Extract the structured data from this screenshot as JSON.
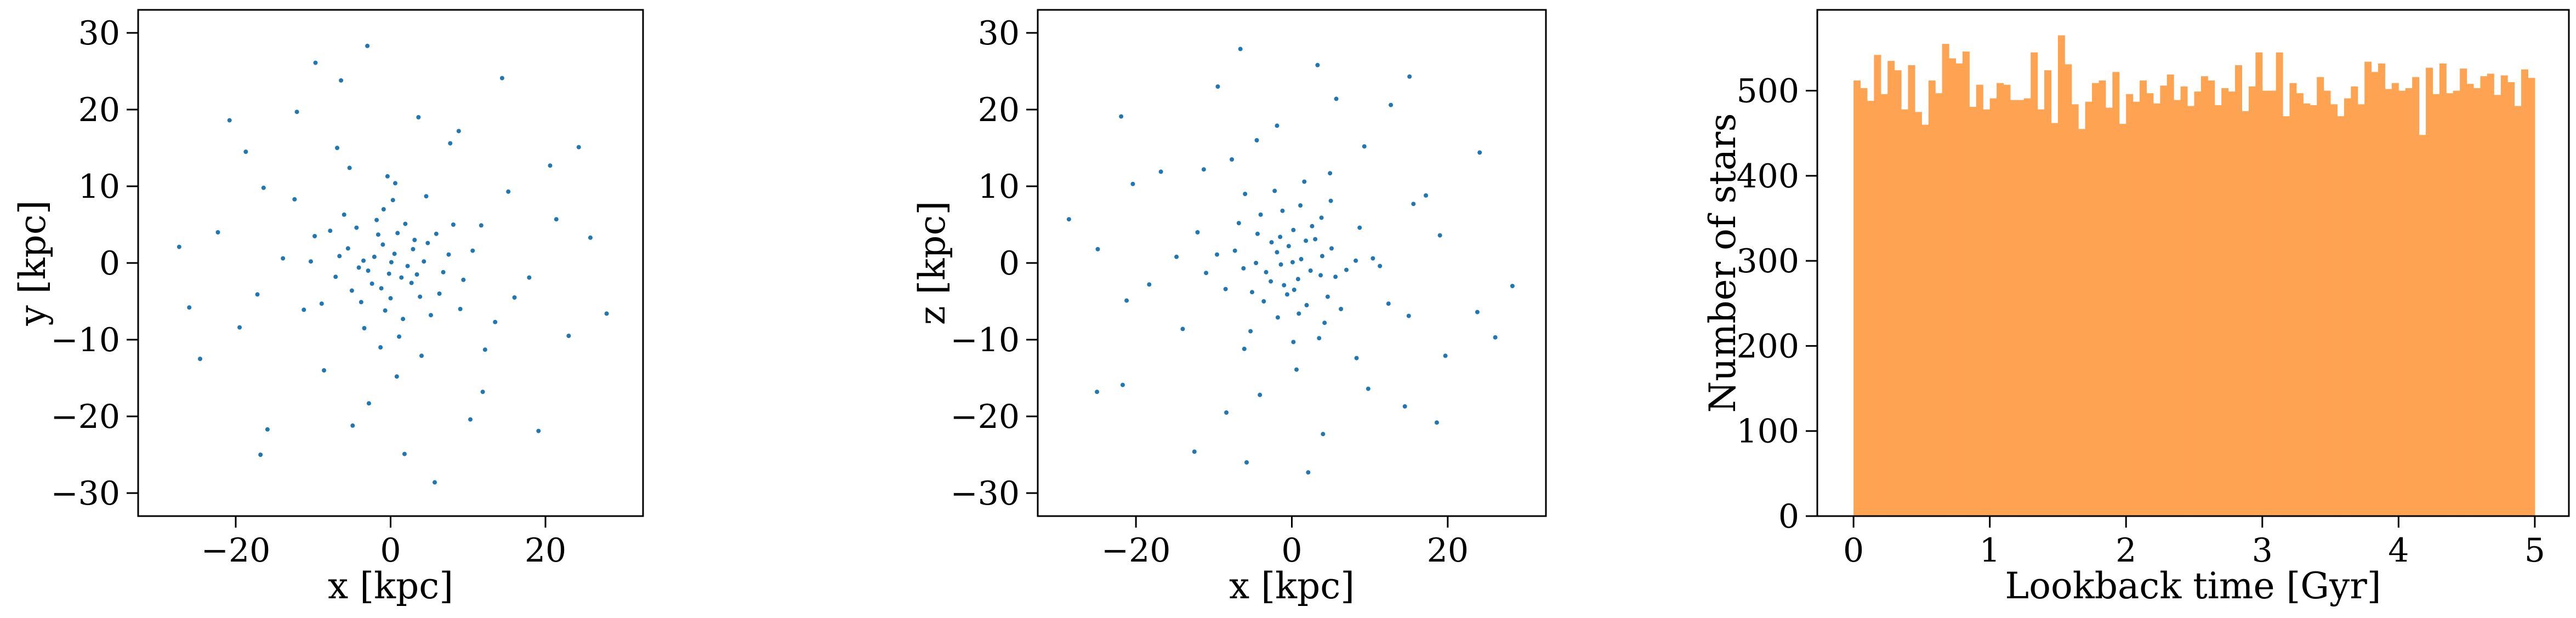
{
  "chart_data": [
    {
      "type": "scatter",
      "xlabel": "x [kpc]",
      "ylabel": "y [kpc]",
      "color": "#1f77b4",
      "xlim": [
        -32.6,
        32.6
      ],
      "ylim": [
        -33,
        33
      ],
      "xticks": [
        {
          "value": -20,
          "label": "−20"
        },
        0,
        20
      ],
      "yticks": [
        {
          "value": -30,
          "label": "−30"
        },
        {
          "value": -20,
          "label": "−20"
        },
        {
          "value": -10,
          "label": "−10"
        },
        0,
        10,
        20,
        30
      ],
      "x": [
        0.5,
        -2.1,
        3.4,
        -1.2,
        4.8,
        -5.5,
        1.9,
        -0.7,
        6.3,
        -3.8,
        2.2,
        -4.4,
        7.5,
        -7.1,
        0.3,
        -1.6,
        3.1,
        -2.9,
        5.2,
        -6.0,
        9.4,
        -9.8,
        1.1,
        -0.4,
        11.7,
        -11.2,
        4.0,
        -5.3,
        13.5,
        -13.9,
        0.8,
        15.2,
        -8.6,
        7.7,
        -16.4,
        17.9,
        -2.8,
        3.6,
        -19.5,
        20.6,
        -12.1,
        10.3,
        -22.3,
        23.0,
        -6.4,
        1.8,
        -24.6,
        25.8,
        -15.9,
        14.4,
        -27.3,
        27.9,
        -3.0,
        5.7,
        -20.8,
        19.1,
        0.1,
        -1.0,
        2.7,
        -3.5,
        1.4,
        -0.2,
        2.9,
        -2.4,
        0.9,
        -4.1,
        4.3,
        -1.8,
        0.0,
        5.9,
        -5.0,
        3.8,
        -6.6,
        6.8,
        -0.9,
        1.6,
        -7.8,
        8.1,
        -3.4,
        4.6,
        -8.9,
        9.0,
        -10.3,
        10.6,
        0.6,
        -1.3,
        -12.4,
        12.2,
        -6.9,
        16.0,
        -17.2,
        8.8,
        -18.7,
        21.4,
        -4.9,
        11.9,
        -26.0,
        24.3,
        -9.7,
        -16.8
      ],
      "y": [
        1.2,
        0.8,
        -1.5,
        -3.3,
        2.6,
        1.9,
        5.1,
        -6.2,
        -4.0,
        -5.1,
        -0.4,
        4.6,
        1.1,
        -1.8,
        8.2,
        3.7,
        3.0,
        -1.0,
        -6.8,
        6.3,
        -2.2,
        3.5,
        -9.6,
        11.3,
        4.9,
        -6.1,
        -12.1,
        12.4,
        -7.7,
        0.6,
        -14.8,
        9.3,
        -14.0,
        15.6,
        9.8,
        -1.9,
        -18.3,
        19.0,
        -8.4,
        12.7,
        19.7,
        -20.4,
        4.0,
        -9.5,
        23.8,
        -24.9,
        -12.5,
        3.3,
        -21.7,
        24.1,
        2.1,
        -6.6,
        28.3,
        -28.6,
        18.6,
        -21.9,
        0.1,
        2.4,
        -2.6,
        0.3,
        -1.9,
        -1.4,
        1.8,
        -2.7,
        3.9,
        -0.6,
        0.2,
        5.6,
        -4.6,
        3.8,
        -3.6,
        -4.4,
        0.9,
        -1.2,
        7.0,
        -7.3,
        4.2,
        5.0,
        -8.5,
        8.7,
        -5.3,
        -6.0,
        0.2,
        1.6,
        10.4,
        -11.0,
        8.3,
        -11.3,
        15.0,
        -4.5,
        -4.1,
        17.2,
        14.5,
        5.7,
        -21.2,
        -16.8,
        -5.8,
        15.1,
        26.1,
        -25.0
      ]
    },
    {
      "type": "scatter",
      "xlabel": "x [kpc]",
      "ylabel": "z [kpc]",
      "color": "#1f77b4",
      "xlim": [
        -32.6,
        32.6
      ],
      "ylim": [
        -33,
        33
      ],
      "xticks": [
        {
          "value": -20,
          "label": "−20"
        },
        0,
        20
      ],
      "yticks": [
        {
          "value": -30,
          "label": "−30"
        },
        {
          "value": -20,
          "label": "−20"
        },
        {
          "value": -10,
          "label": "−10"
        },
        0,
        10,
        20,
        30
      ],
      "x": [
        1.2,
        0.8,
        -1.5,
        -3.3,
        2.6,
        1.9,
        5.1,
        -6.2,
        -4.0,
        -5.1,
        -0.4,
        4.6,
        1.1,
        -1.8,
        8.2,
        3.7,
        3.0,
        -1.0,
        -6.8,
        6.3,
        -2.2,
        3.5,
        -9.6,
        11.3,
        4.9,
        -6.1,
        -12.1,
        12.4,
        -7.7,
        0.6,
        -14.8,
        9.3,
        -14.0,
        15.6,
        9.8,
        -1.9,
        -18.3,
        19.0,
        -8.4,
        12.7,
        19.7,
        -20.4,
        4.0,
        -9.5,
        23.8,
        -24.9,
        -12.5,
        3.3,
        -21.7,
        24.1,
        2.1,
        -6.6,
        28.3,
        -28.6,
        18.6,
        -21.9,
        0.1,
        2.4,
        -2.6,
        0.3,
        -1.9,
        -1.4,
        1.8,
        -2.7,
        3.9,
        -0.6,
        0.2,
        5.6,
        -4.6,
        3.8,
        -3.6,
        -4.4,
        0.9,
        -1.2,
        7.0,
        -7.3,
        4.2,
        5.0,
        -8.5,
        8.7,
        -5.3,
        -6.0,
        0.2,
        1.6,
        10.4,
        -11.0,
        8.3,
        -11.3,
        15.0,
        -4.5,
        -4.1,
        17.2,
        14.5,
        5.7,
        -21.2,
        -16.8,
        -5.8,
        15.1,
        26.1,
        -25.0
      ],
      "y": [
        0.5,
        -2.1,
        3.4,
        -1.2,
        4.8,
        -5.5,
        1.9,
        -0.7,
        6.3,
        -3.8,
        2.2,
        -4.4,
        7.5,
        -7.1,
        0.3,
        -1.6,
        3.1,
        -2.9,
        5.2,
        -6.0,
        9.4,
        -9.8,
        1.1,
        -0.4,
        11.7,
        -11.2,
        4.0,
        -5.3,
        13.5,
        -13.9,
        0.8,
        15.2,
        -8.6,
        7.7,
        -16.4,
        17.9,
        -2.8,
        3.6,
        -19.5,
        20.6,
        -12.1,
        10.3,
        -22.3,
        23.0,
        -6.4,
        1.8,
        -24.6,
        25.8,
        -15.9,
        14.4,
        -27.3,
        27.9,
        -3.0,
        5.7,
        -20.8,
        19.1,
        0.1,
        -1.0,
        2.7,
        -3.5,
        1.4,
        -0.2,
        2.9,
        -2.4,
        0.9,
        -4.1,
        4.3,
        -1.8,
        0.0,
        5.9,
        -5.0,
        3.8,
        -6.6,
        6.8,
        -0.9,
        1.6,
        -7.8,
        8.1,
        -3.4,
        4.6,
        -8.9,
        9.0,
        -10.3,
        10.6,
        0.6,
        -1.3,
        -12.4,
        12.2,
        -6.9,
        16.0,
        -17.2,
        8.8,
        -18.7,
        21.4,
        -4.9,
        11.9,
        -26.0,
        24.3,
        -9.7,
        -16.8
      ]
    },
    {
      "type": "histogram",
      "xlabel": "Lookback time [Gyr]",
      "ylabel": "Number of stars",
      "color": "#fea352",
      "xlim": [
        -0.266,
        5.25
      ],
      "ylim": [
        0,
        595
      ],
      "xticks": [
        0,
        1,
        2,
        3,
        4,
        5
      ],
      "yticks": [
        0,
        100,
        200,
        300,
        400,
        500
      ],
      "bins": [
        0,
        0.05,
        0.1,
        0.15,
        0.2,
        0.25,
        0.3,
        0.35,
        0.4,
        0.45,
        0.5,
        0.55,
        0.6,
        0.65,
        0.7,
        0.75,
        0.8,
        0.85,
        0.9,
        0.95,
        1,
        1.05,
        1.1,
        1.15,
        1.2,
        1.25,
        1.3,
        1.35,
        1.4,
        1.45,
        1.5,
        1.55,
        1.6,
        1.65,
        1.7,
        1.75,
        1.8,
        1.85,
        1.9,
        1.95,
        2,
        2.05,
        2.1,
        2.15,
        2.2,
        2.25,
        2.3,
        2.35,
        2.4,
        2.45,
        2.5,
        2.55,
        2.6,
        2.65,
        2.7,
        2.75,
        2.8,
        2.85,
        2.9,
        2.95,
        3,
        3.05,
        3.1,
        3.15,
        3.2,
        3.25,
        3.3,
        3.35,
        3.4,
        3.45,
        3.5,
        3.55,
        3.6,
        3.65,
        3.7,
        3.75,
        3.8,
        3.85,
        3.9,
        3.95,
        4,
        4.05,
        4.1,
        4.15,
        4.2,
        4.25,
        4.3,
        4.35,
        4.4,
        4.45,
        4.5,
        4.55,
        4.6,
        4.65,
        4.7,
        4.75,
        4.8,
        4.85,
        4.9,
        4.95,
        5
      ],
      "counts": [
        512,
        503,
        488,
        542,
        496,
        535,
        524,
        478,
        530,
        475,
        460,
        512,
        497,
        555,
        538,
        532,
        546,
        481,
        507,
        478,
        491,
        509,
        507,
        489,
        489,
        491,
        545,
        478,
        524,
        462,
        565,
        531,
        484,
        455,
        487,
        509,
        512,
        480,
        522,
        461,
        496,
        487,
        512,
        497,
        485,
        506,
        519,
        489,
        505,
        482,
        499,
        517,
        512,
        483,
        503,
        499,
        530,
        476,
        505,
        545,
        500,
        500,
        545,
        470,
        509,
        497,
        485,
        483,
        516,
        500,
        484,
        470,
        491,
        505,
        484,
        534,
        522,
        532,
        502,
        509,
        500,
        503,
        516,
        448,
        527,
        496,
        532,
        497,
        500,
        526,
        508,
        503,
        517,
        520,
        495,
        518,
        510,
        482,
        525,
        515
      ]
    }
  ]
}
